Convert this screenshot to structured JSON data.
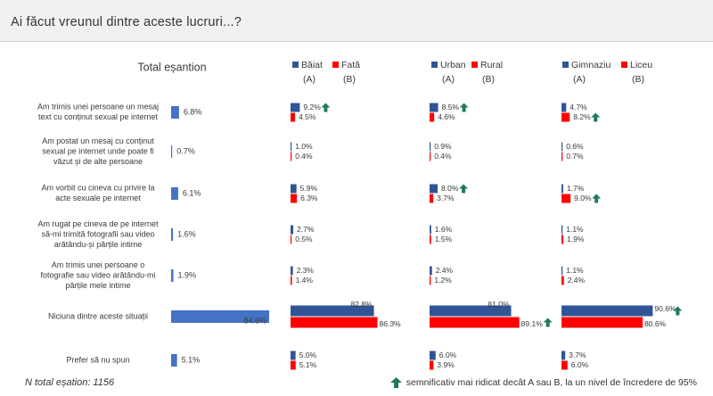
{
  "title": "Ai făcut vreunul dintre aceste lucruri...?",
  "colors": {
    "blue": "#2f5597",
    "red": "#ff0000",
    "green": "#1e7b5a",
    "text": "#3a3a3a"
  },
  "legend": {
    "total": "Total eșantion",
    "groups": [
      {
        "a": "Băiat",
        "a_code": "(A)",
        "b": "Fată",
        "b_code": "(B)"
      },
      {
        "a": "Urban",
        "a_code": "(A)",
        "b": "Rural",
        "b_code": "(B)"
      },
      {
        "a": "Gimnaziu",
        "a_code": "(A)",
        "b": "Liceu",
        "b_code": "(B)"
      }
    ]
  },
  "chart_data": {
    "type": "bar",
    "orientation": "horizontal",
    "unit": "%",
    "categories": [
      [
        "Am trimis unei persoane un mesaj",
        "text cu conținut sexual pe internet"
      ],
      [
        "Am postat un mesaj cu conținut",
        "sexual pe internet unde poate fi",
        "văzut și de alte persoane"
      ],
      [
        "Am vorbit cu cineva cu privire la",
        "acte sexuale pe internet"
      ],
      [
        "Am rugat pe cineva de pe internet",
        "să-mi trimită fotografii sau video",
        "arătându-și părțile intime"
      ],
      [
        "Am trimis unei persoane o",
        "fotografie sau video arătându-mi",
        "părțile mele intime"
      ],
      [
        "Niciuna dintre aceste situații"
      ],
      [
        "Prefer să nu spun"
      ]
    ],
    "total": [
      6.8,
      0.7,
      6.1,
      1.6,
      1.9,
      84.6,
      5.1
    ],
    "groups": [
      {
        "series": [
          {
            "name": "Băiat",
            "values": [
              9.2,
              1.0,
              5.9,
              2.7,
              2.3,
              82.8,
              5.0
            ]
          },
          {
            "name": "Fată",
            "values": [
              4.5,
              0.4,
              6.3,
              0.5,
              1.4,
              86.3,
              5.1
            ]
          }
        ],
        "significant": [
          [
            true,
            false
          ],
          [
            false,
            false
          ],
          [
            false,
            false
          ],
          [
            false,
            false
          ],
          [
            false,
            false
          ],
          [
            false,
            false
          ],
          [
            false,
            false
          ]
        ]
      },
      {
        "series": [
          {
            "name": "Urban",
            "values": [
              8.5,
              0.9,
              8.0,
              1.6,
              2.4,
              81.0,
              6.0
            ]
          },
          {
            "name": "Rural",
            "values": [
              4.6,
              0.4,
              3.7,
              1.5,
              1.2,
              89.1,
              3.9
            ]
          }
        ],
        "significant": [
          [
            true,
            false
          ],
          [
            false,
            false
          ],
          [
            true,
            false
          ],
          [
            false,
            false
          ],
          [
            false,
            false
          ],
          [
            false,
            true
          ],
          [
            false,
            false
          ]
        ]
      },
      {
        "series": [
          {
            "name": "Gimnaziu",
            "values": [
              4.7,
              0.6,
              1.7,
              1.1,
              1.1,
              90.6,
              3.7
            ]
          },
          {
            "name": "Liceu",
            "values": [
              8.2,
              0.7,
              9.0,
              1.9,
              2.4,
              80.6,
              6.0
            ]
          }
        ],
        "significant": [
          [
            false,
            true
          ],
          [
            false,
            false
          ],
          [
            false,
            true
          ],
          [
            false,
            false
          ],
          [
            false,
            false
          ],
          [
            true,
            false
          ],
          [
            false,
            false
          ]
        ]
      }
    ]
  },
  "footer": {
    "sample": "N total eșation: 1156",
    "significance_note": "semnificativ mai ridicat decât A sau B, la un nivel de încredere de 95%"
  }
}
